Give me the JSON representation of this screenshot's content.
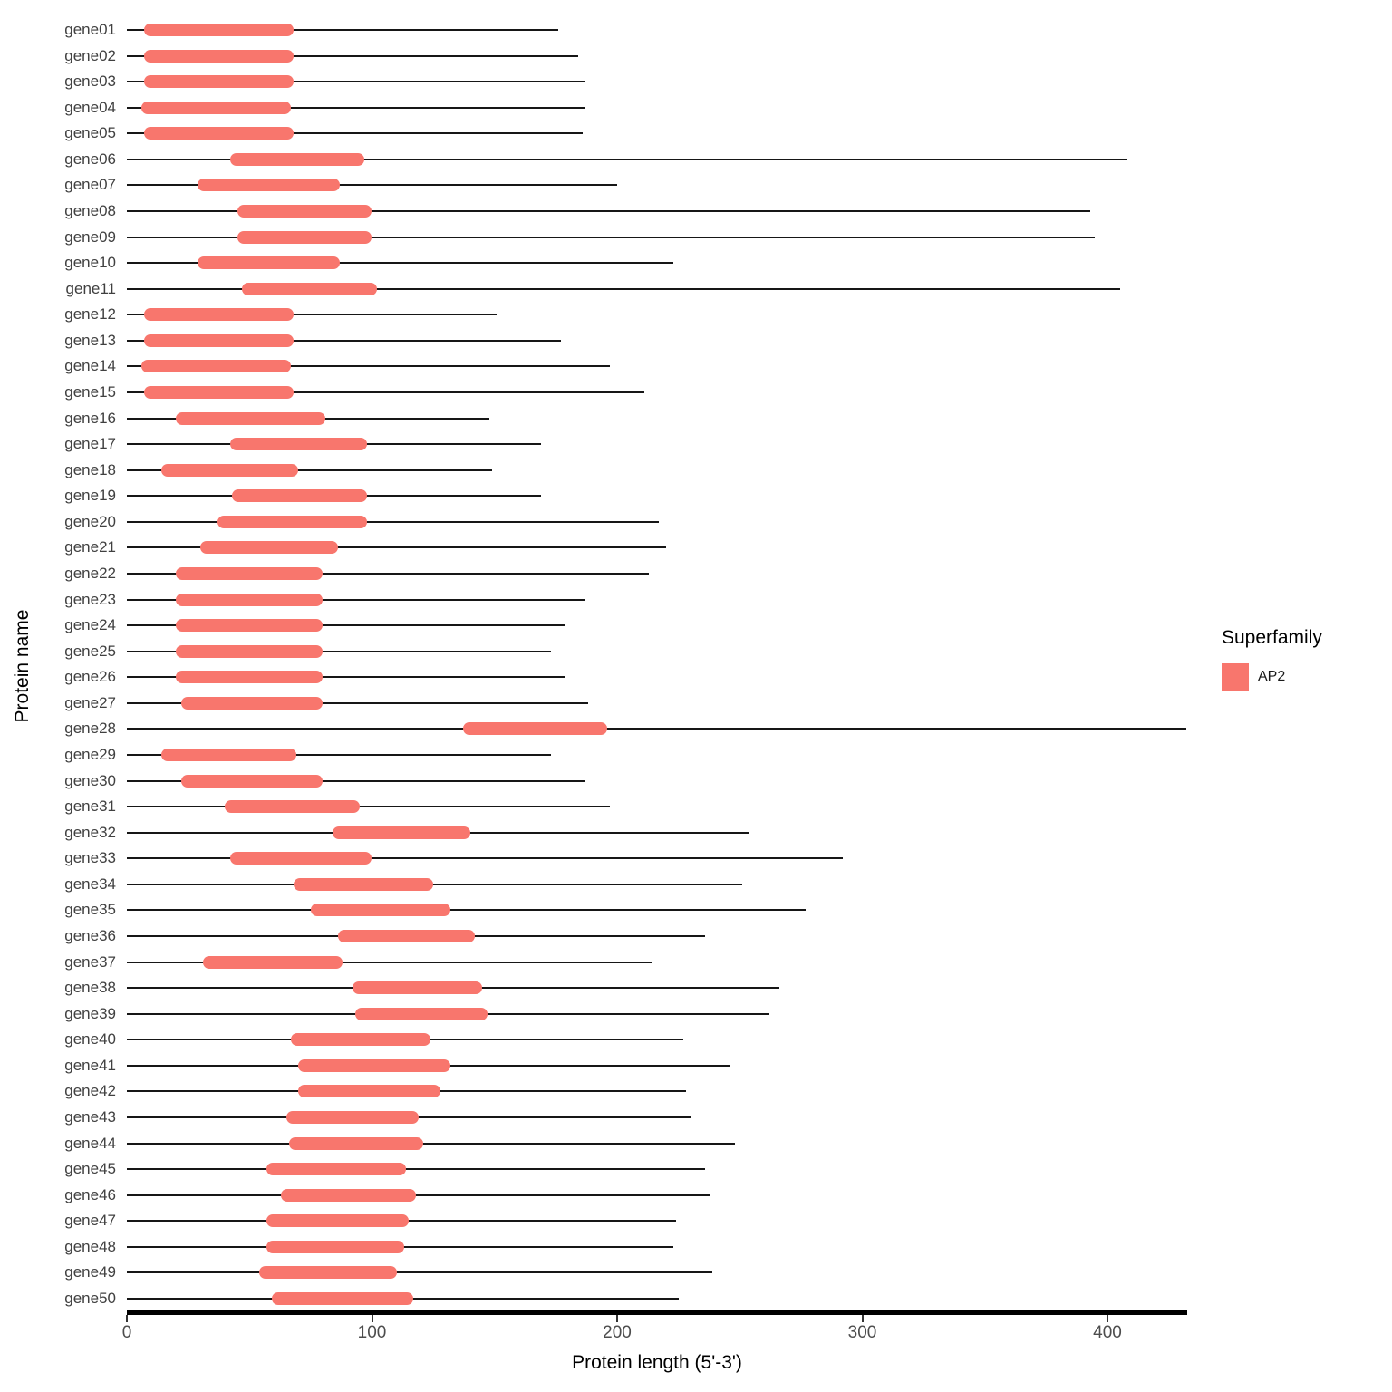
{
  "chart_data": {
    "type": "protein-domain-structure",
    "title": "",
    "xlabel": "Protein length (5'-3')",
    "ylabel": "Protein name",
    "x_ticks": [
      0,
      100,
      200,
      300,
      400
    ],
    "xlim": [
      0,
      435
    ],
    "grid": "off",
    "legend": {
      "position": "right",
      "title": "Superfamily",
      "entries": [
        {
          "label": "AP2",
          "color": "#F8766D"
        }
      ]
    },
    "genes": [
      {
        "name": "gene01",
        "length": 176,
        "domain_start": 7,
        "domain_end": 68
      },
      {
        "name": "gene02",
        "length": 184,
        "domain_start": 7,
        "domain_end": 68
      },
      {
        "name": "gene03",
        "length": 187,
        "domain_start": 7,
        "domain_end": 68
      },
      {
        "name": "gene04",
        "length": 187,
        "domain_start": 6,
        "domain_end": 67
      },
      {
        "name": "gene05",
        "length": 186,
        "domain_start": 7,
        "domain_end": 68
      },
      {
        "name": "gene06",
        "length": 408,
        "domain_start": 42,
        "domain_end": 97
      },
      {
        "name": "gene07",
        "length": 200,
        "domain_start": 29,
        "domain_end": 87
      },
      {
        "name": "gene08",
        "length": 393,
        "domain_start": 45,
        "domain_end": 100
      },
      {
        "name": "gene09",
        "length": 395,
        "domain_start": 45,
        "domain_end": 100
      },
      {
        "name": "gene10",
        "length": 223,
        "domain_start": 29,
        "domain_end": 87
      },
      {
        "name": "gene11",
        "length": 405,
        "domain_start": 47,
        "domain_end": 102
      },
      {
        "name": "gene12",
        "length": 151,
        "domain_start": 7,
        "domain_end": 68
      },
      {
        "name": "gene13",
        "length": 177,
        "domain_start": 7,
        "domain_end": 68
      },
      {
        "name": "gene14",
        "length": 197,
        "domain_start": 6,
        "domain_end": 67
      },
      {
        "name": "gene15",
        "length": 211,
        "domain_start": 7,
        "domain_end": 68
      },
      {
        "name": "gene16",
        "length": 148,
        "domain_start": 20,
        "domain_end": 81
      },
      {
        "name": "gene17",
        "length": 169,
        "domain_start": 42,
        "domain_end": 98
      },
      {
        "name": "gene18",
        "length": 149,
        "domain_start": 14,
        "domain_end": 70
      },
      {
        "name": "gene19",
        "length": 169,
        "domain_start": 43,
        "domain_end": 98
      },
      {
        "name": "gene20",
        "length": 217,
        "domain_start": 37,
        "domain_end": 98
      },
      {
        "name": "gene21",
        "length": 220,
        "domain_start": 30,
        "domain_end": 86
      },
      {
        "name": "gene22",
        "length": 213,
        "domain_start": 20,
        "domain_end": 80
      },
      {
        "name": "gene23",
        "length": 187,
        "domain_start": 20,
        "domain_end": 80
      },
      {
        "name": "gene24",
        "length": 179,
        "domain_start": 20,
        "domain_end": 80
      },
      {
        "name": "gene25",
        "length": 173,
        "domain_start": 20,
        "domain_end": 80
      },
      {
        "name": "gene26",
        "length": 179,
        "domain_start": 20,
        "domain_end": 80
      },
      {
        "name": "gene27",
        "length": 188,
        "domain_start": 22,
        "domain_end": 80
      },
      {
        "name": "gene28",
        "length": 432,
        "domain_start": 137,
        "domain_end": 196
      },
      {
        "name": "gene29",
        "length": 173,
        "domain_start": 14,
        "domain_end": 69
      },
      {
        "name": "gene30",
        "length": 187,
        "domain_start": 22,
        "domain_end": 80
      },
      {
        "name": "gene31",
        "length": 197,
        "domain_start": 40,
        "domain_end": 95
      },
      {
        "name": "gene32",
        "length": 254,
        "domain_start": 84,
        "domain_end": 140
      },
      {
        "name": "gene33",
        "length": 292,
        "domain_start": 42,
        "domain_end": 100
      },
      {
        "name": "gene34",
        "length": 251,
        "domain_start": 68,
        "domain_end": 125
      },
      {
        "name": "gene35",
        "length": 277,
        "domain_start": 75,
        "domain_end": 132
      },
      {
        "name": "gene36",
        "length": 236,
        "domain_start": 86,
        "domain_end": 142
      },
      {
        "name": "gene37",
        "length": 214,
        "domain_start": 31,
        "domain_end": 88
      },
      {
        "name": "gene38",
        "length": 266,
        "domain_start": 92,
        "domain_end": 145
      },
      {
        "name": "gene39",
        "length": 262,
        "domain_start": 93,
        "domain_end": 147
      },
      {
        "name": "gene40",
        "length": 227,
        "domain_start": 67,
        "domain_end": 124
      },
      {
        "name": "gene41",
        "length": 246,
        "domain_start": 70,
        "domain_end": 132
      },
      {
        "name": "gene42",
        "length": 228,
        "domain_start": 70,
        "domain_end": 128
      },
      {
        "name": "gene43",
        "length": 230,
        "domain_start": 65,
        "domain_end": 119
      },
      {
        "name": "gene44",
        "length": 248,
        "domain_start": 66,
        "domain_end": 121
      },
      {
        "name": "gene45",
        "length": 236,
        "domain_start": 57,
        "domain_end": 114
      },
      {
        "name": "gene46",
        "length": 238,
        "domain_start": 63,
        "domain_end": 118
      },
      {
        "name": "gene47",
        "length": 224,
        "domain_start": 57,
        "domain_end": 115
      },
      {
        "name": "gene48",
        "length": 223,
        "domain_start": 57,
        "domain_end": 113
      },
      {
        "name": "gene49",
        "length": 239,
        "domain_start": 54,
        "domain_end": 110
      },
      {
        "name": "gene50",
        "length": 225,
        "domain_start": 59,
        "domain_end": 117
      }
    ]
  }
}
